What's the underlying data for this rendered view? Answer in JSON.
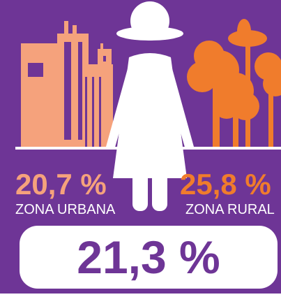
{
  "urban": {
    "value": "20,7 %",
    "label": "ZONA URBANA"
  },
  "rural": {
    "value": "25,8 %",
    "label": "ZONA RURAL"
  },
  "total": "21,3 %"
}
